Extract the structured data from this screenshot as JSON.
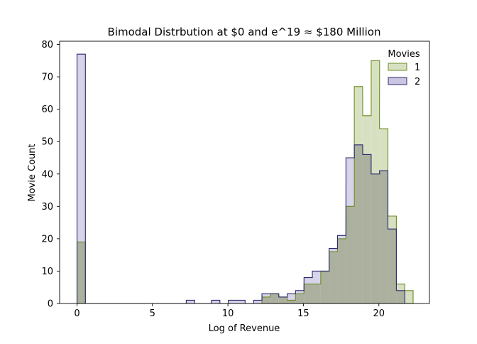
{
  "chart_data": {
    "type": "histogram",
    "title": "Bimodal Distrbution at $0 and e^19 ≈ $180 Million",
    "xlabel": "Log of Revenue",
    "ylabel": "Movie Count",
    "xlim": [
      -1.15,
      23.35
    ],
    "ylim": [
      0,
      81
    ],
    "xticks": [
      0,
      5,
      10,
      15,
      20
    ],
    "yticks": [
      0,
      10,
      20,
      30,
      40,
      50,
      60,
      70,
      80
    ],
    "legend": {
      "title": "Movies",
      "position": "top-right"
    },
    "bin_width": 0.557,
    "series": [
      {
        "name": "1",
        "fill": "#d8e0c2",
        "stroke": "#6b8e23",
        "bins": [
          {
            "x0": 0.0,
            "count": 19
          },
          {
            "x0": 12.25,
            "count": 2
          },
          {
            "x0": 12.81,
            "count": 3
          },
          {
            "x0": 13.37,
            "count": 2
          },
          {
            "x0": 13.92,
            "count": 1
          },
          {
            "x0": 14.48,
            "count": 3
          },
          {
            "x0": 15.04,
            "count": 6
          },
          {
            "x0": 15.59,
            "count": 6
          },
          {
            "x0": 16.15,
            "count": 10
          },
          {
            "x0": 16.7,
            "count": 16
          },
          {
            "x0": 17.26,
            "count": 20
          },
          {
            "x0": 17.82,
            "count": 30
          },
          {
            "x0": 18.37,
            "count": 67
          },
          {
            "x0": 18.93,
            "count": 58
          },
          {
            "x0": 19.49,
            "count": 75
          },
          {
            "x0": 20.04,
            "count": 54
          },
          {
            "x0": 20.6,
            "count": 27
          },
          {
            "x0": 21.16,
            "count": 6
          },
          {
            "x0": 21.71,
            "count": 4
          }
        ]
      },
      {
        "name": "2",
        "fill": "#c9c5e2",
        "stroke": "#2a2a6e",
        "bins": [
          {
            "x0": 0.0,
            "count": 77
          },
          {
            "x0": 7.24,
            "count": 1
          },
          {
            "x0": 8.91,
            "count": 1
          },
          {
            "x0": 10.03,
            "count": 1
          },
          {
            "x0": 10.58,
            "count": 1
          },
          {
            "x0": 11.7,
            "count": 1
          },
          {
            "x0": 12.25,
            "count": 3
          },
          {
            "x0": 12.81,
            "count": 3
          },
          {
            "x0": 13.37,
            "count": 2
          },
          {
            "x0": 13.92,
            "count": 3
          },
          {
            "x0": 14.48,
            "count": 4
          },
          {
            "x0": 15.04,
            "count": 8
          },
          {
            "x0": 15.59,
            "count": 10
          },
          {
            "x0": 16.15,
            "count": 10
          },
          {
            "x0": 16.7,
            "count": 17
          },
          {
            "x0": 17.26,
            "count": 21
          },
          {
            "x0": 17.82,
            "count": 45
          },
          {
            "x0": 18.37,
            "count": 49
          },
          {
            "x0": 18.93,
            "count": 46
          },
          {
            "x0": 19.49,
            "count": 40
          },
          {
            "x0": 20.04,
            "count": 41
          },
          {
            "x0": 20.6,
            "count": 23
          },
          {
            "x0": 21.16,
            "count": 4
          }
        ]
      }
    ],
    "overlap_fill": "#acb09f"
  }
}
